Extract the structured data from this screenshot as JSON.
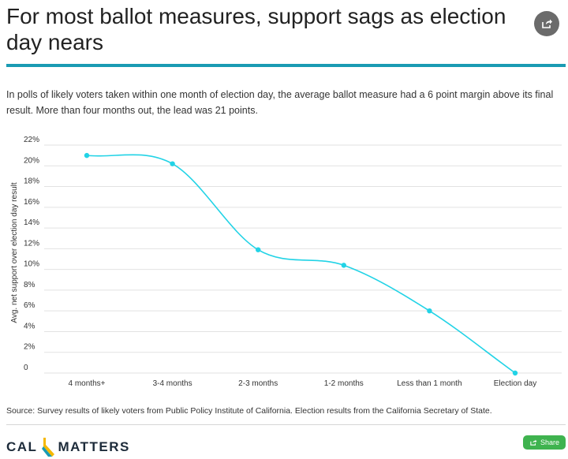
{
  "header": {
    "title": "For most ballot measures, support sags as election day nears",
    "subtitle": "In polls of likely voters taken within one month of election day, the average ballot measure had a 6 point margin above its final result. More than four months out, the lead was 21 points."
  },
  "chart_data": {
    "type": "line",
    "title": "",
    "xlabel": "",
    "ylabel": "Avg. net support over election day result",
    "categories": [
      "4 months+",
      "3-4 months",
      "2-3 months",
      "1-2 months",
      "Less than 1 month",
      "Election day"
    ],
    "series": [
      {
        "values": [
          21,
          20.2,
          11.9,
          10.4,
          6,
          0
        ]
      }
    ],
    "ylim": [
      0,
      22
    ],
    "yticks": [
      0,
      2,
      4,
      6,
      8,
      10,
      12,
      14,
      16,
      18,
      20,
      22
    ],
    "ytick_labels": [
      "0",
      "2%",
      "4%",
      "6%",
      "8%",
      "10%",
      "12%",
      "14%",
      "16%",
      "18%",
      "20%",
      "22%"
    ],
    "grid": true,
    "line_color": "#22d3e6"
  },
  "source": "Source: Survey results of likely voters from Public Policy Institute of California. Election results from the California Secretary of State.",
  "footer": {
    "logo_left": "CAL",
    "logo_right": "MATTERS",
    "share_label": "Share"
  },
  "colors": {
    "accent_rule": "#1a9bb3",
    "share_button": "#3fb34f",
    "logo_mark": "#f5b800",
    "logo_mark_dark": "#1a9bb3"
  }
}
